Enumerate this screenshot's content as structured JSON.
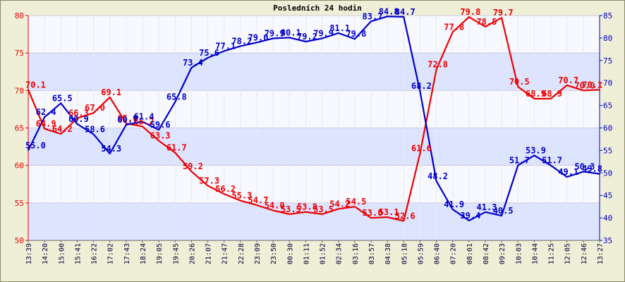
{
  "chart_data": {
    "type": "line",
    "title": "Posledních 24 hodin",
    "x": [
      "13:39",
      "14:20",
      "15:00",
      "15:41",
      "16:22",
      "17:02",
      "17:43",
      "18:24",
      "19:05",
      "19:45",
      "20:26",
      "21:07",
      "21:47",
      "22:28",
      "23:09",
      "23:50",
      "00:30",
      "01:11",
      "01:52",
      "02:34",
      "03:16",
      "03:57",
      "04:38",
      "05:18",
      "05:59",
      "06:40",
      "07:20",
      "08:01",
      "08:42",
      "09:23",
      "10:03",
      "10:44",
      "11:25",
      "12:05",
      "12:46",
      "13:27"
    ],
    "y_left": {
      "min": 50,
      "max": 80,
      "ticks": [
        50,
        55,
        60,
        65,
        70,
        75,
        80
      ],
      "color": "#ee0000"
    },
    "y_right": {
      "min": 35,
      "max": 85,
      "ticks": [
        35,
        40,
        45,
        50,
        55,
        60,
        65,
        70,
        75,
        80,
        85
      ],
      "color": "#0000cc"
    },
    "series": [
      {
        "axis": "left",
        "color": "#ee0000",
        "values": [
          70.1,
          64.9,
          64.2,
          66.3,
          67.0,
          69.1,
          65.6,
          65.2,
          63.3,
          61.7,
          59.2,
          57.3,
          56.2,
          55.3,
          54.7,
          54.0,
          53.5,
          53.8,
          53.5,
          54.2,
          54.5,
          53.0,
          53.1,
          52.6,
          61.6,
          72.8,
          77.8,
          79.8,
          78.5,
          79.7,
          70.5,
          68.9,
          68.9,
          70.7,
          70.0,
          70.1
        ],
        "labels": [
          "70.1",
          "64.9",
          "64.2",
          "66.3",
          "67.0",
          "69.1",
          "65.6",
          "65.2",
          "63.3",
          "61.7",
          "59.2",
          "57.3",
          "56.2",
          "55.3",
          "54.7",
          "54.0",
          "53.5",
          "53.8",
          "53.5",
          "54.2",
          "54.5",
          "53.0",
          "53.1",
          "52.6",
          "61.6",
          "72.8",
          "77.8",
          "79.8",
          "78.5",
          "79.7",
          "70.5",
          "68.9",
          "68.9",
          "70.7",
          "70.0",
          "70.1"
        ]
      },
      {
        "axis": "right",
        "color": "#0000cc",
        "values": [
          55.0,
          62.4,
          65.5,
          60.9,
          58.6,
          54.3,
          60.7,
          61.4,
          59.6,
          65.8,
          73.4,
          75.6,
          77.1,
          78.2,
          79.0,
          79.9,
          80.1,
          79.2,
          79.9,
          81.1,
          79.8,
          83.7,
          84.8,
          84.7,
          68.2,
          48.2,
          41.9,
          39.4,
          41.3,
          40.5,
          51.7,
          53.9,
          51.7,
          49.1,
          50.3,
          49.8
        ],
        "labels": [
          "55.0",
          "62.4",
          "65.5",
          "60.9",
          "58.6",
          "54.3",
          "60.7",
          "61.4",
          "59.6",
          "65.8",
          "73.4",
          "75.6",
          "77.1",
          "78.2",
          "79.0",
          "79.9",
          "80.1",
          "79.2",
          "79.9",
          "81.1",
          "79.8",
          "83.7",
          "84.8",
          "84.7",
          "68.2",
          "48.2",
          "41.9",
          "39.4",
          "41.3",
          "40.5",
          "51.7",
          "53.9",
          "51.7",
          "49.1",
          "50.3",
          "49.8"
        ]
      }
    ],
    "grid": true,
    "band_colors": [
      "#dde4ff",
      "#f8f8ff"
    ]
  }
}
